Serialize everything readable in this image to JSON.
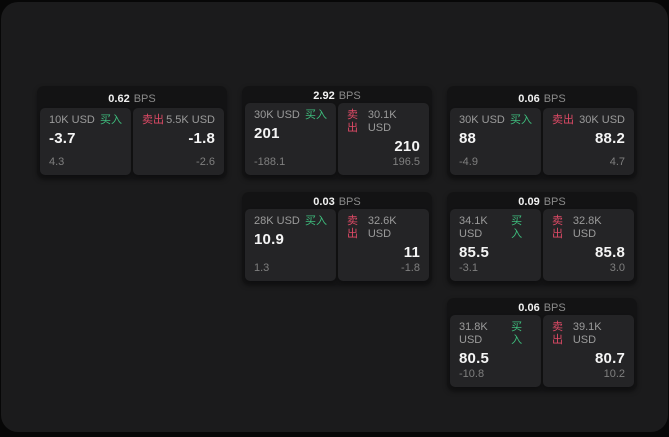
{
  "app": {
    "unit_label": "BPS",
    "buy_label": "买入",
    "sell_label": "卖出"
  },
  "colors": {
    "buy_green": "#3ebd7d",
    "sell_red": "#df4a66",
    "panel_bg": "#1b1b1c",
    "card_bg": "#131314",
    "tile_bg": "#242426"
  },
  "cards": [
    {
      "bps": "0.62",
      "buy": {
        "amount": "10K USD",
        "price": "-3.7",
        "delta": "4.3"
      },
      "sell": {
        "amount": "5.5K USD",
        "price": "-1.8",
        "delta": "-2.6"
      }
    },
    {
      "bps": "2.92",
      "buy": {
        "amount": "30K USD",
        "price": "201",
        "delta": "-188.1"
      },
      "sell": {
        "amount": "30.1K USD",
        "price": "210",
        "delta": "196.5"
      }
    },
    {
      "bps": "0.06",
      "buy": {
        "amount": "30K USD",
        "price": "88",
        "delta": "-4.9"
      },
      "sell": {
        "amount": "30K USD",
        "price": "88.2",
        "delta": "4.7"
      }
    },
    {
      "bps": "0.03",
      "buy": {
        "amount": "28K USD",
        "price": "10.9",
        "delta": "1.3"
      },
      "sell": {
        "amount": "32.6K USD",
        "price": "11",
        "delta": "-1.8"
      }
    },
    {
      "bps": "0.09",
      "buy": {
        "amount": "34.1K USD",
        "price": "85.5",
        "delta": "-3.1"
      },
      "sell": {
        "amount": "32.8K USD",
        "price": "85.8",
        "delta": "3.0"
      }
    },
    {
      "bps": "0.06",
      "buy": {
        "amount": "31.8K USD",
        "price": "80.5",
        "delta": "-10.8"
      },
      "sell": {
        "amount": "39.1K USD",
        "price": "80.7",
        "delta": "10.2"
      }
    }
  ]
}
